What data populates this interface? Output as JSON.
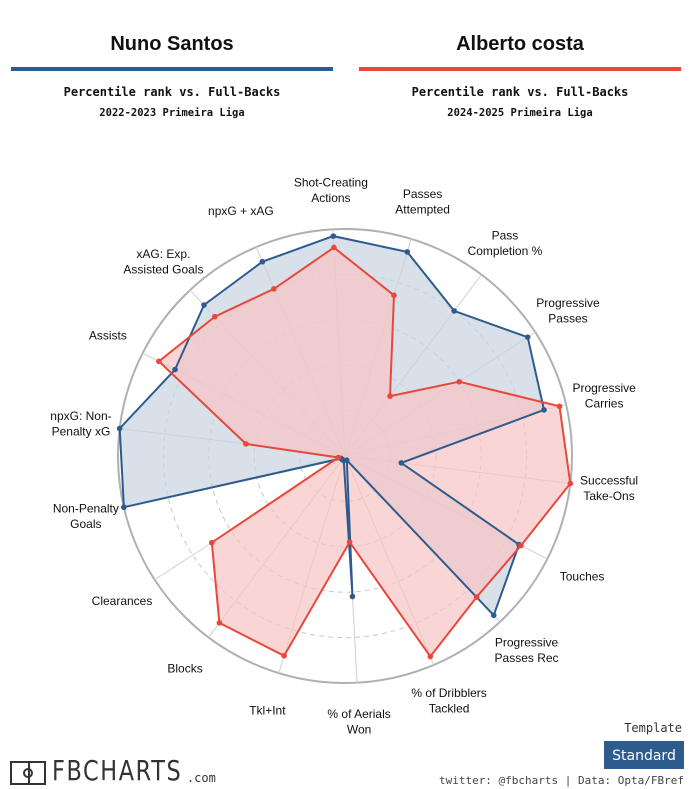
{
  "players": {
    "left": {
      "name": "Nuno Santos",
      "subtitle": "Percentile rank vs. Full-Backs",
      "season": "2022-2023 Primeira Liga",
      "color": "#2e5b8e",
      "fill": "#c8d3e1"
    },
    "right": {
      "name": "Alberto costa",
      "subtitle": "Percentile rank vs. Full-Backs",
      "season": "2024-2025 Primeira Liga",
      "color": "#e8483a",
      "fill": "#f8c3c3"
    }
  },
  "chart_data": {
    "type": "radar",
    "scale_max": 100,
    "rings": [
      20,
      40,
      60,
      80,
      100
    ],
    "axes": [
      {
        "label": [
          "Passes",
          "Attempted"
        ]
      },
      {
        "label": [
          "Pass",
          "Completion %"
        ]
      },
      {
        "label": [
          "Progressive",
          "Passes"
        ]
      },
      {
        "label": [
          "Progressive",
          "Carries"
        ]
      },
      {
        "label": [
          "Successful",
          "Take-Ons"
        ]
      },
      {
        "label": [
          "Touches"
        ]
      },
      {
        "label": [
          "Progressive",
          "Passes Rec"
        ]
      },
      {
        "label": [
          "% of Dribblers",
          "Tackled"
        ]
      },
      {
        "label": [
          "% of Aerials",
          "Won"
        ]
      },
      {
        "label": [
          "Tkl+Int"
        ]
      },
      {
        "label": [
          "Blocks"
        ]
      },
      {
        "label": [
          "Clearances"
        ]
      },
      {
        "label": [
          "Non-Penalty",
          "Goals"
        ]
      },
      {
        "label": [
          "npxG: Non-",
          "Penalty xG"
        ]
      },
      {
        "label": [
          "Assists"
        ]
      },
      {
        "label": [
          "xAG: Exp.",
          "Assisted Goals"
        ]
      },
      {
        "label": [
          "npxG + xAG"
        ]
      },
      {
        "label": [
          "Shot-Creating",
          "Actions"
        ]
      }
    ],
    "series": [
      {
        "name": "Nuno Santos",
        "values": [
          94,
          80,
          96,
          90,
          25,
          86,
          96,
          2,
          62,
          2,
          2,
          2,
          100,
          100,
          84,
          91,
          93,
          97
        ]
      },
      {
        "name": "Alberto costa",
        "values": [
          74,
          33,
          60,
          97,
          100,
          87,
          85,
          96,
          38,
          92,
          92,
          70,
          3,
          44,
          92,
          84,
          80,
          92
        ]
      }
    ]
  },
  "footer": {
    "template_label": "Template",
    "template_button": "Standard",
    "credit": "twitter: @fbcharts | Data: Opta/FBref",
    "logo_text": "FBCHARTS",
    "logo_domain": ".com"
  }
}
